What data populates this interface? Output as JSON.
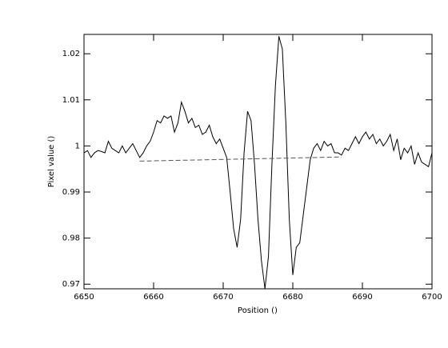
{
  "chart_data": {
    "type": "line",
    "xlabel": "Position ()",
    "ylabel": "Pixel value ()",
    "xlim": [
      6650,
      6700
    ],
    "xticks": [
      6650,
      6660,
      6670,
      6680,
      6690,
      6700
    ],
    "ylim": [
      0.969,
      1.0242
    ],
    "yticks": [
      0.97,
      0.98,
      0.99,
      1,
      1.01,
      1.02
    ],
    "series": [
      {
        "color": "#000000",
        "dashed": false,
        "x": [
          6650,
          6650.5,
          6651,
          6651.5,
          6652,
          6652.5,
          6653,
          6653.5,
          6654,
          6654.5,
          6655,
          6655.5,
          6656,
          6656.5,
          6657,
          6657.5,
          6658,
          6658.5,
          6659,
          6659.5,
          6660,
          6660.5,
          6661,
          6661.5,
          6662,
          6662.5,
          6663,
          6663.5,
          6664,
          6664.5,
          6665,
          6665.5,
          6666,
          6666.5,
          6667,
          6667.5,
          6668,
          6668.5,
          6669,
          6669.5,
          6670,
          6670.5,
          6671,
          6671.5,
          6672,
          6672.5,
          6673,
          6673.5,
          6674,
          6674.5,
          6675,
          6675.5,
          6676,
          6676.5,
          6677,
          6677.5,
          6678,
          6678.5,
          6679,
          6679.5,
          6680,
          6680.5,
          6681,
          6681.5,
          6682,
          6682.5,
          6683,
          6683.5,
          6684,
          6684.5,
          6685,
          6685.5,
          6686,
          6686.5,
          6687,
          6687.5,
          6688,
          6688.5,
          6689,
          6689.5,
          6690,
          6690.5,
          6691,
          6691.5,
          6692,
          6692.5,
          6693,
          6693.5,
          6694,
          6694.5,
          6695,
          6695.5,
          6696,
          6696.5,
          6697,
          6697.5,
          6698,
          6698.5,
          6699,
          6699.5,
          6700
        ],
        "values": [
          0.9985,
          0.999,
          0.9975,
          0.9985,
          0.999,
          0.9988,
          0.9985,
          1.001,
          0.9995,
          0.999,
          0.9985,
          1.0,
          0.9985,
          0.9995,
          1.0005,
          0.999,
          0.9975,
          0.9985,
          1.0,
          1.001,
          1.003,
          1.0055,
          1.005,
          1.0065,
          1.006,
          1.0065,
          1.003,
          1.005,
          1.0095,
          1.0075,
          1.005,
          1.006,
          1.004,
          1.0045,
          1.0025,
          1.003,
          1.0045,
          1.002,
          1.0005,
          1.0015,
          0.9995,
          0.9975,
          0.99,
          0.982,
          0.978,
          0.984,
          0.9985,
          1.0075,
          1.0055,
          0.996,
          0.984,
          0.975,
          0.969,
          0.976,
          0.996,
          1.013,
          1.0238,
          1.021,
          1.005,
          0.984,
          0.972,
          0.978,
          0.979,
          0.985,
          0.991,
          0.997,
          0.9995,
          1.0005,
          0.999,
          1.001,
          1.0,
          1.0005,
          0.9985,
          0.9985,
          0.998,
          0.9995,
          0.999,
          1.0005,
          1.002,
          1.0005,
          1.002,
          1.003,
          1.0015,
          1.0025,
          1.0005,
          1.0015,
          1.0,
          1.001,
          1.0025,
          0.999,
          1.0015,
          0.997,
          0.9995,
          0.9985,
          1.0,
          0.996,
          0.9985,
          0.9965,
          0.996,
          0.9955,
          0.9985
        ]
      },
      {
        "color": "#555555",
        "dashed": true,
        "x": [
          6658,
          6687
        ],
        "values": [
          0.9967,
          0.9976
        ]
      }
    ]
  }
}
